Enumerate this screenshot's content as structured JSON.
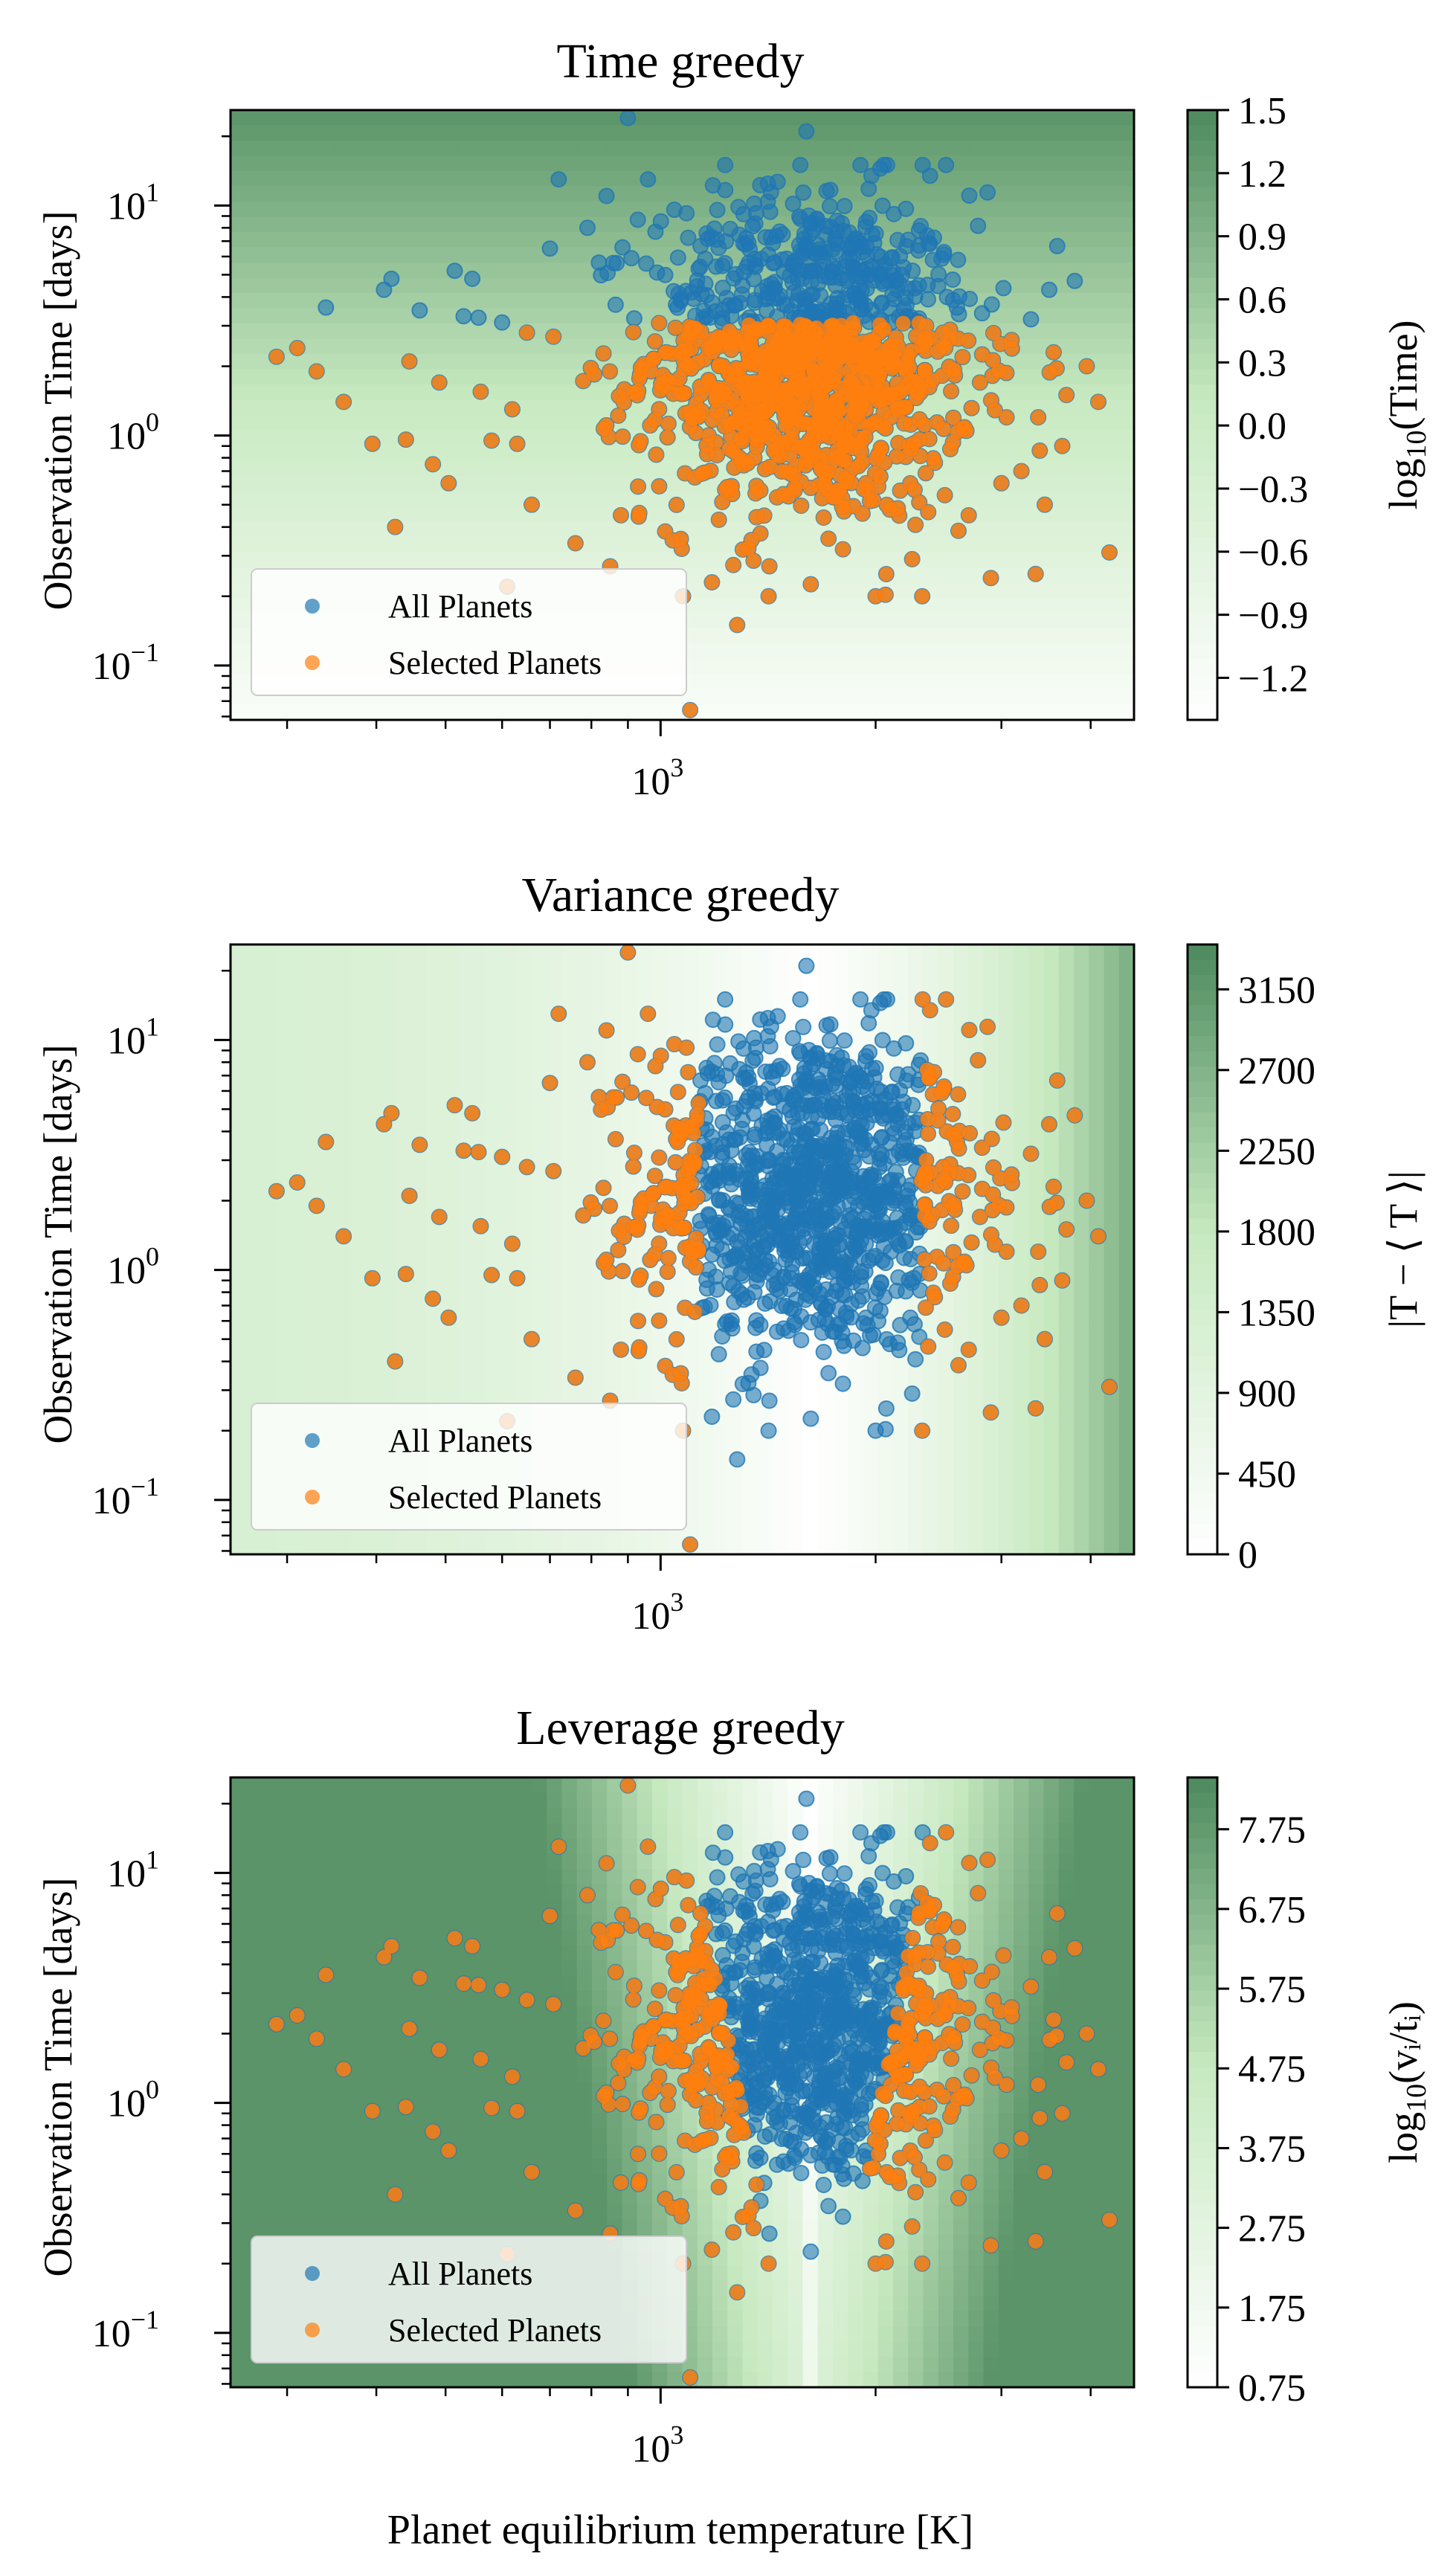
{
  "figure": {
    "xlabel": "Planet equilibrium temperature [K]",
    "xtick_base": "10",
    "xtick_exp": "3"
  },
  "colors": {
    "all_planets": "#1f77b4",
    "selected_planets": "#ff7f0e",
    "cmap_low": "#ffffff",
    "cmap_high": "#3f7f52"
  },
  "chart_data": [
    {
      "type": "scatter",
      "title": "Time greedy",
      "xlabel": "Planet equilibrium temperature [K]",
      "ylabel": "Observation Time [days]",
      "xscale": "log",
      "yscale": "log",
      "xlim": [
        250,
        4600
      ],
      "ylim": [
        0.058,
        26
      ],
      "xticks": [
        {
          "base": "10",
          "exp": "3"
        }
      ],
      "yticks": [
        {
          "base": "10",
          "exp": "1"
        },
        {
          "base": "10",
          "exp": "0"
        },
        {
          "base": "10",
          "exp": "−1"
        }
      ],
      "background": "time",
      "selection_rule": "time",
      "legend": {
        "position": "lower-left",
        "entries": [
          "All Planets",
          "Selected Planets"
        ]
      },
      "colorbar": {
        "label": "log10(Time)",
        "label_main": "log",
        "label_sub": "10",
        "label_rest": "(Time)",
        "range": [
          -1.4,
          1.5
        ],
        "ticks": [
          "1.5",
          "1.2",
          "0.9",
          "0.6",
          "0.3",
          "0.0",
          "−0.3",
          "−0.6",
          "−0.9",
          "−1.2"
        ],
        "tick_values": [
          1.5,
          1.2,
          0.9,
          0.6,
          0.3,
          0.0,
          -0.3,
          -0.6,
          -0.9,
          -1.2
        ]
      }
    },
    {
      "type": "scatter",
      "title": "Variance greedy",
      "xlabel": "Planet equilibrium temperature [K]",
      "ylabel": "Observation Time [days]",
      "xscale": "log",
      "yscale": "log",
      "xlim": [
        250,
        4600
      ],
      "ylim": [
        0.058,
        26
      ],
      "xticks": [
        {
          "base": "10",
          "exp": "3"
        }
      ],
      "yticks": [
        {
          "base": "10",
          "exp": "1"
        },
        {
          "base": "10",
          "exp": "0"
        },
        {
          "base": "10",
          "exp": "−1"
        }
      ],
      "background": "variance",
      "selection_rule": "variance",
      "legend": {
        "position": "lower-left",
        "entries": [
          "All Planets",
          "Selected Planets"
        ]
      },
      "colorbar": {
        "label": "|T − ⟨ T ⟩|",
        "label_main": "|T − ⟨ T ⟩|",
        "label_sub": "",
        "label_rest": "",
        "range": [
          0,
          3400
        ],
        "ticks": [
          "3150",
          "2700",
          "2250",
          "1800",
          "1350",
          "900",
          "450",
          "0"
        ],
        "tick_values": [
          3150,
          2700,
          2250,
          1800,
          1350,
          900,
          450,
          0
        ]
      }
    },
    {
      "type": "scatter",
      "title": "Leverage greedy",
      "xlabel": "Planet equilibrium temperature [K]",
      "ylabel": "Observation Time [days]",
      "xscale": "log",
      "yscale": "log",
      "xlim": [
        250,
        4600
      ],
      "ylim": [
        0.058,
        26
      ],
      "xticks": [
        {
          "base": "10",
          "exp": "3"
        }
      ],
      "yticks": [
        {
          "base": "10",
          "exp": "1"
        },
        {
          "base": "10",
          "exp": "0"
        },
        {
          "base": "10",
          "exp": "−1"
        }
      ],
      "background": "leverage",
      "selection_rule": "leverage",
      "legend": {
        "position": "lower-left",
        "entries": [
          "All Planets",
          "Selected Planets"
        ]
      },
      "colorbar": {
        "label": "log10(vi/ti)",
        "label_main": "log",
        "label_sub": "10",
        "label_rest": "(vᵢ/tᵢ)",
        "range": [
          0.75,
          8.4
        ],
        "ticks": [
          "7.75",
          "6.75",
          "5.75",
          "4.75",
          "3.75",
          "2.75",
          "1.75",
          "0.75"
        ],
        "tick_values": [
          7.75,
          6.75,
          5.75,
          4.75,
          3.75,
          2.75,
          1.75,
          0.75
        ]
      }
    }
  ],
  "scatter_points": {
    "description_free": true,
    "outliers": [
      [
        290,
        2.2
      ],
      [
        310,
        2.4
      ],
      [
        330,
        1.9
      ],
      [
        340,
        3.6
      ],
      [
        360,
        1.4
      ],
      [
        395,
        0.92
      ],
      [
        410,
        4.3
      ],
      [
        420,
        4.8
      ],
      [
        425,
        0.4
      ],
      [
        440,
        0.96
      ],
      [
        445,
        2.1
      ],
      [
        460,
        3.5
      ],
      [
        480,
        0.75
      ],
      [
        490,
        1.7
      ],
      [
        505,
        0.62
      ],
      [
        515,
        5.2
      ],
      [
        530,
        3.3
      ],
      [
        545,
        4.8
      ],
      [
        560,
        1.55
      ],
      [
        580,
        0.95
      ],
      [
        600,
        3.1
      ],
      [
        610,
        0.22
      ],
      [
        620,
        1.3
      ],
      [
        630,
        0.92
      ],
      [
        650,
        2.8
      ],
      [
        660,
        0.5
      ],
      [
        700,
        6.5
      ],
      [
        720,
        13
      ],
      [
        760,
        0.34
      ],
      [
        790,
        8.0
      ],
      [
        840,
        11
      ],
      [
        850,
        0.27
      ],
      [
        880,
        0.45
      ],
      [
        900,
        24
      ],
      [
        930,
        0.6
      ],
      [
        960,
        13
      ],
      [
        1040,
        0.35
      ],
      [
        1100,
        0.064
      ],
      [
        1180,
        0.23
      ],
      [
        1280,
        0.15
      ],
      [
        1420,
        0.27
      ],
      [
        1600,
        21
      ],
      [
        1800,
        0.32
      ],
      [
        2000,
        0.2
      ],
      [
        2250,
        0.29
      ],
      [
        2500,
        0.55
      ],
      [
        2700,
        0.45
      ],
      [
        2900,
        0.24
      ],
      [
        3050,
        1.2
      ],
      [
        3200,
        0.7
      ],
      [
        3350,
        0.25
      ],
      [
        3500,
        4.3
      ],
      [
        3550,
        2.3
      ],
      [
        3650,
        0.9
      ],
      [
        3700,
        1.5
      ],
      [
        3800,
        4.7
      ],
      [
        3950,
        2.0
      ],
      [
        4100,
        1.4
      ],
      [
        4250,
        0.31
      ],
      [
        2300,
        4.5
      ],
      [
        2600,
        3.6
      ],
      [
        3100,
        2.6
      ],
      [
        3300,
        3.2
      ],
      [
        2800,
        1.7
      ],
      [
        3450,
        0.5
      ],
      [
        3000,
        0.62
      ]
    ]
  }
}
